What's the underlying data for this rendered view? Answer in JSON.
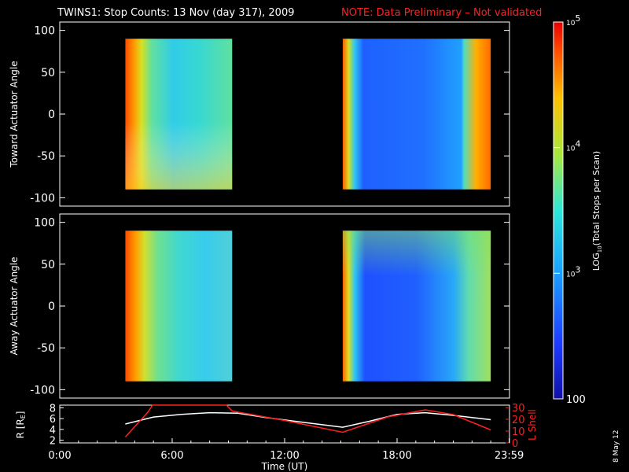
{
  "title": {
    "main": "TWINS1: Stop Counts: 13 Nov (day 317), 2009",
    "note": "NOTE: Data Preliminary – Not validated"
  },
  "stamp": "8 May 12",
  "colors": {
    "background": "#000000",
    "axes": "#ffffff",
    "lshell": "#ff2020",
    "radius": "#ffffff"
  },
  "chart_data": [
    {
      "type": "heatmap",
      "ylabel": "Toward Actuator Angle",
      "ylim": [
        -110,
        110
      ],
      "yticks": [
        -100,
        -50,
        0,
        50,
        100
      ],
      "xlim": [
        0,
        24
      ],
      "segments": [
        {
          "x_start": 3.5,
          "x_end": 9.2,
          "y_min": -90,
          "y_max": 90
        },
        {
          "x_start": 15.1,
          "x_end": 23.0,
          "y_min": -90,
          "y_max": 90
        }
      ]
    },
    {
      "type": "heatmap",
      "ylabel": "Away Actuator Angle",
      "ylim": [
        -110,
        110
      ],
      "yticks": [
        -100,
        -50,
        0,
        50,
        100
      ],
      "xlim": [
        0,
        24
      ],
      "segments": [
        {
          "x_start": 3.5,
          "x_end": 9.2,
          "y_min": -90,
          "y_max": 90
        },
        {
          "x_start": 15.1,
          "x_end": 23.0,
          "y_min": -90,
          "y_max": 90
        }
      ]
    },
    {
      "type": "line",
      "xlabel": "Time (UT)",
      "xlim": [
        0,
        24
      ],
      "xticks": [
        "0:00",
        "6:00",
        "12:00",
        "18:00",
        "23:59"
      ],
      "ylabel_left": "R [R",
      "ylabel_left_sub": "E",
      "ylabel_left_end": "]",
      "ylim_left": [
        1.5,
        8.5
      ],
      "yticks_left": [
        "2",
        "4",
        "6",
        "8"
      ],
      "ylabel_right": "L Shell",
      "ylim_right": [
        0,
        32
      ],
      "yticks_right": [
        "0",
        "10",
        "20",
        "30"
      ],
      "series": [
        {
          "name": "R",
          "axis": "left",
          "x": [
            3.5,
            5,
            6.5,
            8,
            9.5,
            11,
            13,
            15.1,
            16.5,
            18,
            19.5,
            21,
            23
          ],
          "y": [
            5.0,
            6.3,
            6.8,
            7.1,
            7.0,
            6.2,
            5.3,
            4.4,
            5.5,
            6.8,
            7.1,
            6.6,
            5.8
          ]
        },
        {
          "name": "L Shell",
          "axis": "right",
          "x": [
            3.5,
            4.7,
            4.95,
            8.9,
            9.2,
            12,
            15.1,
            17.5,
            19.5,
            21,
            23
          ],
          "y": [
            5,
            26,
            32,
            32,
            27,
            19,
            9,
            22,
            28,
            24,
            11
          ]
        }
      ]
    }
  ],
  "colorbar": {
    "label_prefix": "LOG",
    "label_sub": "10",
    "label_suffix": "(Total Stops per Scan)",
    "ticks": [
      {
        "base": "10",
        "exp": "5",
        "value": 100000
      },
      {
        "base": "10",
        "exp": "4",
        "value": 10000
      },
      {
        "base": "10",
        "exp": "3",
        "value": 1000
      },
      {
        "base": "100",
        "exp": "",
        "value": 100
      }
    ],
    "range": [
      100,
      100000
    ],
    "scale": "log"
  }
}
